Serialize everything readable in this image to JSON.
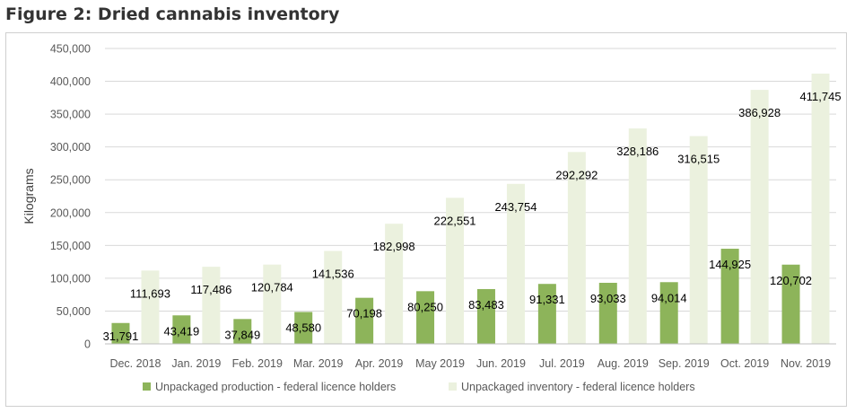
{
  "figure": {
    "title": "Figure 2: Dried cannabis inventory"
  },
  "colors": {
    "production": "#8db45a",
    "inventory": "#ebf1de",
    "grid": "#d9d9d9",
    "axis": "#bfbfbf"
  },
  "chart_data": {
    "type": "bar",
    "title": "Figure 2: Dried cannabis inventory",
    "xlabel": "",
    "ylabel": "Kilograms",
    "ylim": [
      0,
      450000
    ],
    "yticks": [
      "0",
      "50,000",
      "100,000",
      "150,000",
      "200,000",
      "250,000",
      "300,000",
      "350,000",
      "400,000",
      "450,000"
    ],
    "ytick_values": [
      0,
      50000,
      100000,
      150000,
      200000,
      250000,
      300000,
      350000,
      400000,
      450000
    ],
    "grid": true,
    "legend_position": "bottom",
    "categories": [
      "Dec. 2018",
      "Jan. 2019",
      "Feb. 2019",
      "Mar. 2019",
      "Apr. 2019",
      "May 2019",
      "Jun. 2019",
      "Jul. 2019",
      "Aug. 2019",
      "Sep. 2019",
      "Oct. 2019",
      "Nov. 2019"
    ],
    "series": [
      {
        "name": "Unpackaged production - federal licence holders",
        "color": "#8db45a",
        "values": [
          31791,
          43419,
          37849,
          48580,
          70198,
          80250,
          83483,
          91331,
          93033,
          94014,
          144925,
          120702
        ],
        "labels": [
          "31,791",
          "43,419",
          "37,849",
          "48,580",
          "70,198",
          "80,250",
          "83,483",
          "91,331",
          "93,033",
          "94,014",
          "144,925",
          "120,702"
        ]
      },
      {
        "name": "Unpackaged inventory - federal licence holders",
        "color": "#ebf1de",
        "values": [
          111693,
          117486,
          120784,
          141536,
          182998,
          222551,
          243754,
          292292,
          328186,
          316515,
          386928,
          411745
        ],
        "labels": [
          "111,693",
          "117,486",
          "120,784",
          "141,536",
          "182,998",
          "222,551",
          "243,754",
          "292,292",
          "328,186",
          "316,515",
          "386,928",
          "411,745"
        ]
      }
    ]
  }
}
